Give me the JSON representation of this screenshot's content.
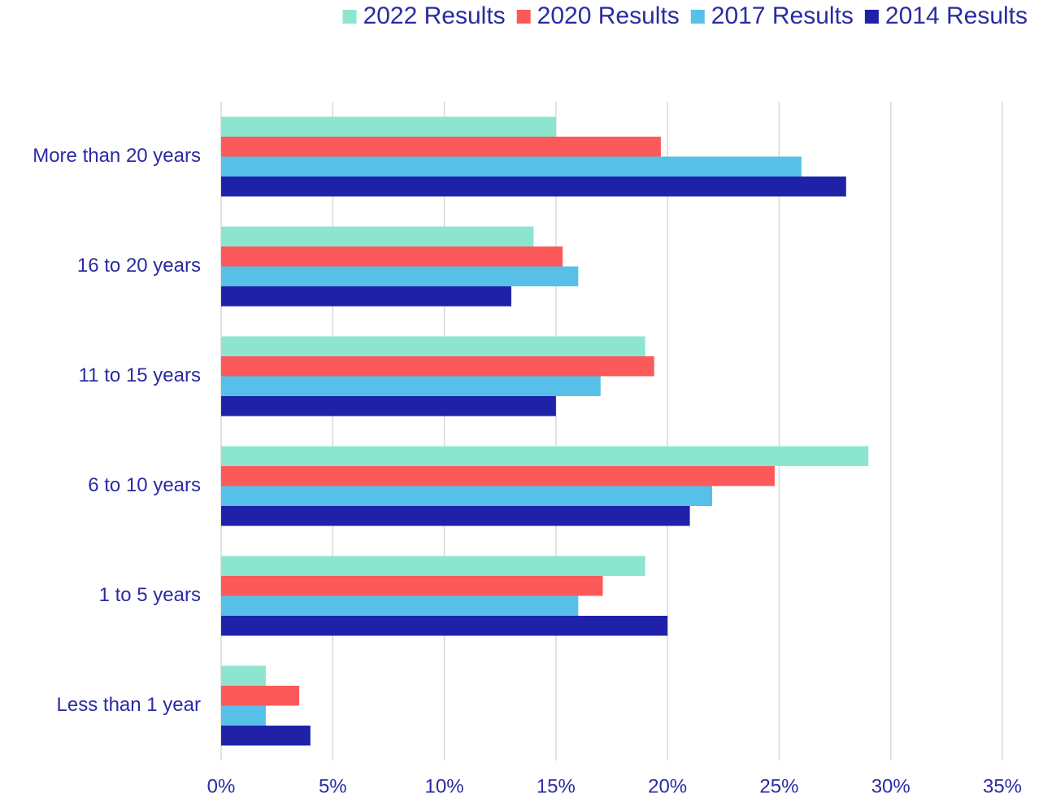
{
  "chart_data": {
    "type": "hbar",
    "categories": [
      "More than 20 years",
      "16 to 20 years",
      "11 to 15 years",
      "6 to 10 years",
      "1 to 5 years",
      "Less than 1 year"
    ],
    "series": [
      {
        "name": "2022 Results",
        "color": "#8ce6cf",
        "values": [
          15.0,
          14.0,
          19.0,
          29.0,
          19.0,
          2.0
        ]
      },
      {
        "name": "2020 Results",
        "color": "#fc5a5a",
        "values": [
          19.7,
          15.3,
          19.4,
          24.8,
          17.1,
          3.5
        ]
      },
      {
        "name": "2017 Results",
        "color": "#56c0e8",
        "values": [
          26.0,
          16.0,
          17.0,
          22.0,
          16.0,
          2.0
        ]
      },
      {
        "name": "2014 Results",
        "color": "#1f22a8",
        "values": [
          28.0,
          13.0,
          15.0,
          21.0,
          20.0,
          4.0
        ]
      }
    ],
    "xlim": [
      0,
      35
    ],
    "xticks": [
      {
        "value": 0,
        "label": "0%"
      },
      {
        "value": 5,
        "label": "5%"
      },
      {
        "value": 10,
        "label": "10%"
      },
      {
        "value": 15,
        "label": "15%"
      },
      {
        "value": 20,
        "label": "20%"
      },
      {
        "value": 25,
        "label": "25%"
      },
      {
        "value": 30,
        "label": "30%"
      },
      {
        "value": 35,
        "label": "35%"
      }
    ],
    "grid": true,
    "legend": "top-right"
  }
}
